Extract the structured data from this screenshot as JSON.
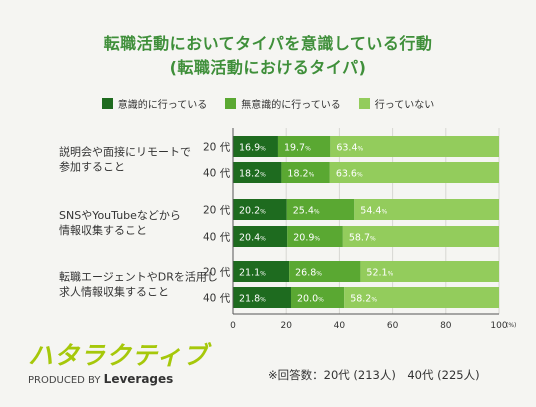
{
  "title_line1": "転職活動においてタイパを意識している行動",
  "title_line2": "(転職活動におけるタイパ)",
  "footnote": "※回答数：20代 (213人)　40代 (225人)",
  "logo": {
    "main": "ハタラクティブ",
    "produced_by": "PRODUCED BY",
    "brand": "Leverages"
  },
  "colors": {
    "series1": "#1e6b1f",
    "series2": "#5aa832",
    "series3": "#93cc5c",
    "title": "#3f8f3a"
  },
  "chart_data": {
    "type": "bar",
    "orientation": "horizontal",
    "stacked": true,
    "categories": [
      "説明会や面接にリモートで参加すること",
      "SNSやYouTubeなどから情報収集すること",
      "転職エージェントやDRを活用し求人情報収集すること"
    ],
    "category_lines": [
      [
        "説明会や面接にリモートで",
        "参加すること"
      ],
      [
        "SNSやYouTubeなどから",
        "情報収集すること"
      ],
      [
        "転職エージェントやDRを活用し",
        "求人情報収集すること"
      ]
    ],
    "groups": [
      "20 代",
      "40 代"
    ],
    "series": [
      {
        "name": "意識的に行っている",
        "values": [
          [
            16.9,
            18.2
          ],
          [
            20.2,
            20.4
          ],
          [
            21.1,
            21.8
          ]
        ]
      },
      {
        "name": "無意識的に行っている",
        "values": [
          [
            19.7,
            18.2
          ],
          [
            25.4,
            20.9
          ],
          [
            26.8,
            20.0
          ]
        ]
      },
      {
        "name": "行っていない",
        "values": [
          [
            63.4,
            63.6
          ],
          [
            54.4,
            58.7
          ],
          [
            52.1,
            58.2
          ]
        ]
      }
    ],
    "xlim": [
      0,
      100
    ],
    "xticks": [
      "0",
      "20",
      "40",
      "60",
      "80",
      "100"
    ],
    "x_unit": "(%)",
    "value_suffix": "%",
    "legend_position": "top"
  }
}
